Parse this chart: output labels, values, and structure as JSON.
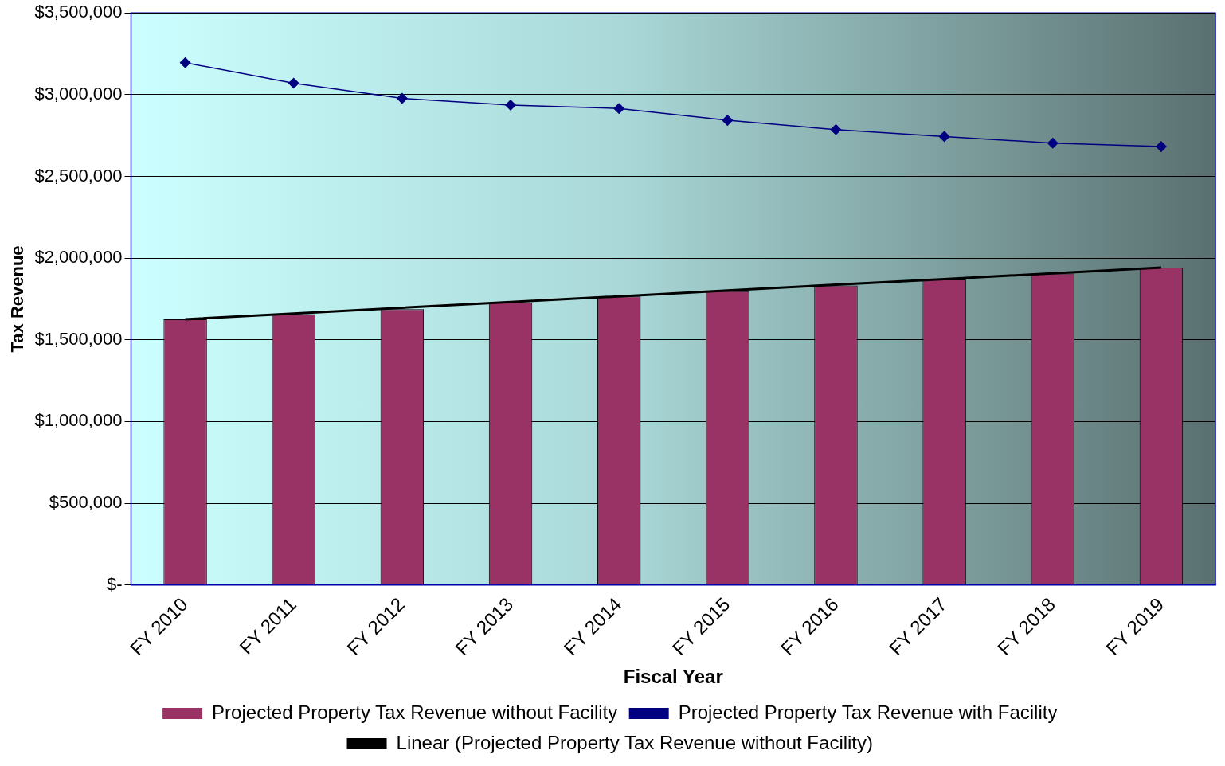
{
  "chart_data": {
    "type": "bar",
    "xlabel": "Fiscal Year",
    "ylabel": "Tax Revenue",
    "categories": [
      "FY 2010",
      "FY 2011",
      "FY 2012",
      "FY 2013",
      "FY 2014",
      "FY 2015",
      "FY 2016",
      "FY 2017",
      "FY 2018",
      "FY 2019"
    ],
    "series": [
      {
        "name": "Projected Property Tax Revenue without Facility",
        "color": "#993366",
        "values": [
          1626000,
          1657000,
          1688000,
          1729000,
          1766000,
          1797000,
          1833000,
          1869000,
          1905000,
          1942000
        ]
      },
      {
        "name": "Projected Property Tax Revenue with Facility",
        "type": "line",
        "color": "#000080",
        "marker": "diamond",
        "values": [
          3195000,
          3070000,
          2977000,
          2936000,
          2915000,
          2843000,
          2786000,
          2744000,
          2703000,
          2682000
        ]
      },
      {
        "name": "Linear (Projected Property Tax Revenue without Facility)",
        "type": "line",
        "color": "#000000",
        "marker": "none",
        "values": [
          1626000,
          1661000,
          1696000,
          1731000,
          1766000,
          1802000,
          1837000,
          1872000,
          1907000,
          1942000
        ]
      }
    ],
    "ylim": [
      0,
      3500000
    ],
    "yticks": [
      {
        "value": 0,
        "label": "$-"
      },
      {
        "value": 500000,
        "label": "$500,000"
      },
      {
        "value": 1000000,
        "label": "$1,000,000"
      },
      {
        "value": 1500000,
        "label": "$1,500,000"
      },
      {
        "value": 2000000,
        "label": "$2,000,000"
      },
      {
        "value": 2500000,
        "label": "$2,500,000"
      },
      {
        "value": 3000000,
        "label": "$3,000,000"
      },
      {
        "value": 3500000,
        "label": "$3,500,000"
      }
    ],
    "grid": "y",
    "legend": "bottom"
  }
}
